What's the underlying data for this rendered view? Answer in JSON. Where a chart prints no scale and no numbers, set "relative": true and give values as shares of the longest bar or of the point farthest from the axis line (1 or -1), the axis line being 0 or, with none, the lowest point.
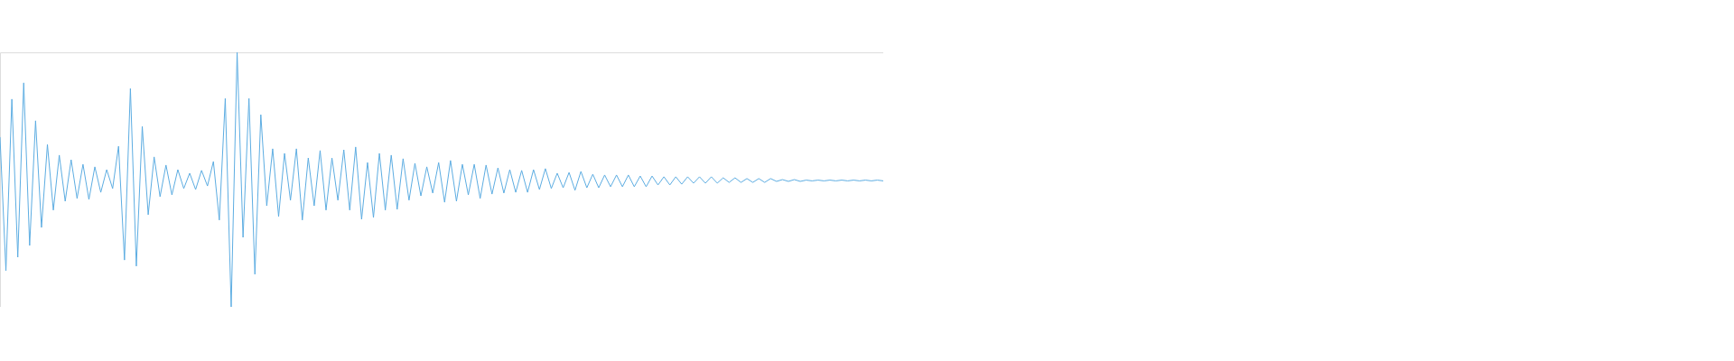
{
  "chart_data": {
    "type": "line",
    "relative": true,
    "categories": [
      null,
      null,
      null,
      null,
      null,
      null,
      null,
      null,
      null,
      null,
      null,
      null,
      null,
      null,
      null,
      null,
      null,
      null,
      null,
      null,
      null,
      null,
      null,
      null,
      null,
      null,
      null,
      null,
      null,
      null,
      null,
      null,
      null,
      null,
      null,
      null,
      null,
      null,
      null,
      null,
      null,
      null,
      null,
      null,
      null,
      null,
      null,
      null,
      null,
      null,
      null,
      null,
      null,
      null,
      null,
      null,
      null,
      null,
      null,
      null,
      null,
      null,
      null,
      null,
      null,
      null,
      null,
      null,
      null,
      null,
      null,
      null,
      null,
      null,
      null,
      null,
      null,
      null,
      null,
      null,
      null,
      null,
      null,
      null,
      null,
      null,
      null,
      null,
      null,
      null,
      null,
      null,
      null,
      null,
      null,
      null,
      null,
      null,
      null,
      null,
      null,
      null,
      null,
      null,
      null,
      null,
      null,
      null,
      null,
      null,
      null,
      null,
      null,
      null,
      null,
      null,
      null,
      null,
      null,
      null,
      null,
      null,
      null,
      null,
      null,
      null,
      null,
      null,
      null,
      null,
      null,
      null,
      null,
      null,
      null,
      null,
      null,
      null,
      null,
      null,
      null,
      null,
      null,
      null,
      null,
      null,
      null,
      null,
      null,
      null
    ],
    "series": [
      {
        "color": "#5dade2",
        "values": [
          0.667,
          0.142,
          0.816,
          0.195,
          0.88,
          0.241,
          0.731,
          0.312,
          0.638,
          0.38,
          0.596,
          0.415,
          0.578,
          0.426,
          0.56,
          0.422,
          0.55,
          0.45,
          0.539,
          0.465,
          0.631,
          0.184,
          0.858,
          0.16,
          0.709,
          0.362,
          0.589,
          0.433,
          0.557,
          0.44,
          0.539,
          0.465,
          0.525,
          0.461,
          0.536,
          0.475,
          0.571,
          0.341,
          0.819,
          0.0,
          1.0,
          0.273,
          0.819,
          0.128,
          0.755,
          0.397,
          0.621,
          0.355,
          0.603,
          0.419,
          0.621,
          0.341,
          0.585,
          0.397,
          0.614,
          0.38,
          0.585,
          0.419,
          0.617,
          0.38,
          0.628,
          0.344,
          0.567,
          0.351,
          0.603,
          0.38,
          0.596,
          0.383,
          0.582,
          0.419,
          0.564,
          0.436,
          0.55,
          0.447,
          0.567,
          0.411,
          0.575,
          0.415,
          0.56,
          0.44,
          0.56,
          0.426,
          0.557,
          0.443,
          0.546,
          0.447,
          0.539,
          0.45,
          0.536,
          0.45,
          0.539,
          0.461,
          0.543,
          0.465,
          0.525,
          0.468,
          0.528,
          0.458,
          0.532,
          0.468,
          0.521,
          0.468,
          0.518,
          0.472,
          0.518,
          0.472,
          0.518,
          0.472,
          0.514,
          0.472,
          0.514,
          0.479,
          0.511,
          0.479,
          0.511,
          0.482,
          0.511,
          0.486,
          0.511,
          0.486,
          0.511,
          0.486,
          0.507,
          0.489,
          0.507,
          0.489,
          0.504,
          0.489,
          0.504,
          0.489,
          0.504,
          0.493,
          0.5,
          0.493,
          0.5,
          0.493,
          0.498,
          0.495,
          0.498,
          0.495,
          0.498,
          0.495,
          0.498,
          0.495,
          0.498,
          0.495,
          0.498,
          0.495,
          0.498,
          0.495
        ]
      }
    ]
  }
}
